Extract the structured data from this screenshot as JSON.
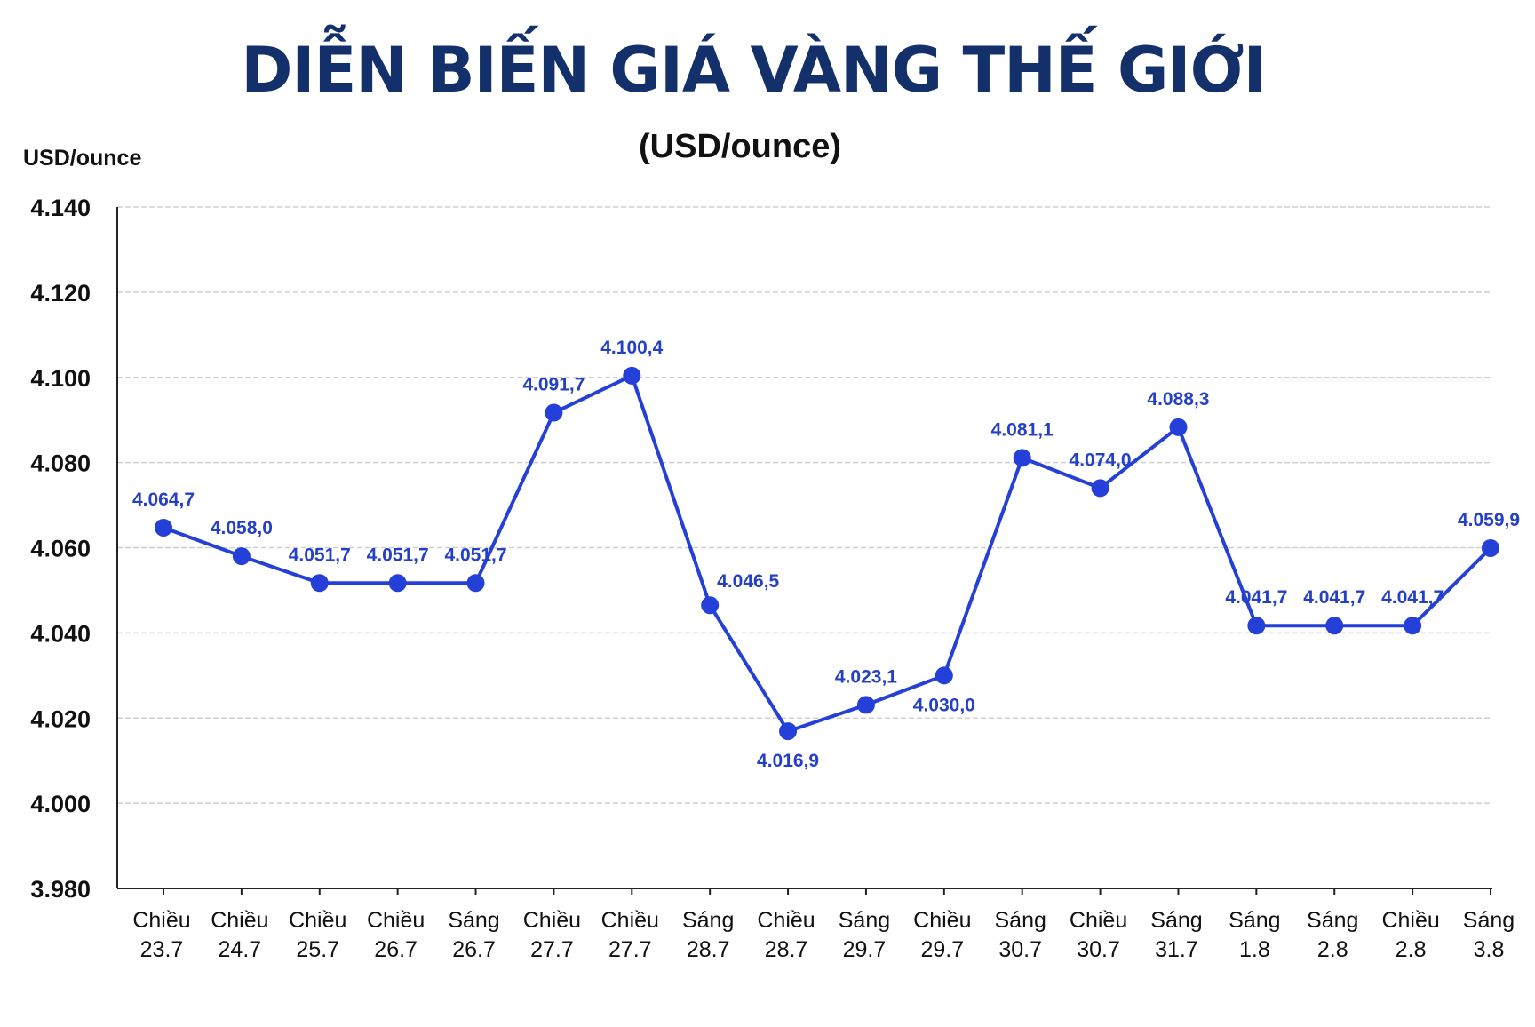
{
  "chart_data": {
    "type": "line",
    "title": "DIỄN BIẾN GIÁ VÀNG THẾ GIỚI",
    "subtitle": "(USD/ounce)",
    "ylabel": "USD/ounce",
    "ylim": [
      3980,
      4140
    ],
    "yticks": [
      3980,
      4000,
      4020,
      4040,
      4060,
      4080,
      4100,
      4120,
      4140
    ],
    "ytick_labels": [
      "3.980",
      "4.000",
      "4.020",
      "4.040",
      "4.060",
      "4.080",
      "4.100",
      "4.120",
      "4.140"
    ],
    "grid": true,
    "line_color": "#2540d8",
    "categories": [
      [
        "Chiều",
        "23.7"
      ],
      [
        "Chiều",
        "24.7"
      ],
      [
        "Chiều",
        "25.7"
      ],
      [
        "Chiều",
        "26.7"
      ],
      [
        "Sáng",
        "26.7"
      ],
      [
        "Chiều",
        "27.7"
      ],
      [
        "Chiều",
        "27.7"
      ],
      [
        "Sáng",
        "28.7"
      ],
      [
        "Chiều",
        "28.7"
      ],
      [
        "Sáng",
        "29.7"
      ],
      [
        "Chiều",
        "29.7"
      ],
      [
        "Sáng",
        "30.7"
      ],
      [
        "Chiều",
        "30.7"
      ],
      [
        "Sáng",
        "31.7"
      ],
      [
        "Sáng",
        "1.8"
      ],
      [
        "Sáng",
        "2.8"
      ],
      [
        "Chiều",
        "2.8"
      ],
      [
        "Sáng",
        "3.8"
      ]
    ],
    "values": [
      4064.7,
      4058.0,
      4051.7,
      4051.7,
      4051.7,
      4091.7,
      4100.4,
      4046.5,
      4016.9,
      4023.1,
      4030.0,
      4081.1,
      4074.0,
      4088.3,
      4041.7,
      4041.7,
      4041.7,
      4059.9
    ],
    "value_labels": [
      "4.064,7",
      "4.058,0",
      "4.051,7",
      "4.051,7",
      "4.051,7",
      "4.091,7",
      "4.100,4",
      "4.046,5",
      "4.016,9",
      "4.023,1",
      "4.030,0",
      "4.081,1",
      "4.074,0",
      "4.088,3",
      "4.041,7",
      "4.041,7",
      "4.041,7",
      "4.059,9"
    ],
    "label_positions": [
      "above",
      "above",
      "above",
      "above",
      "above",
      "above",
      "above",
      "above-right",
      "below",
      "above",
      "below",
      "above",
      "above",
      "above",
      "above",
      "above",
      "above",
      "above"
    ]
  }
}
